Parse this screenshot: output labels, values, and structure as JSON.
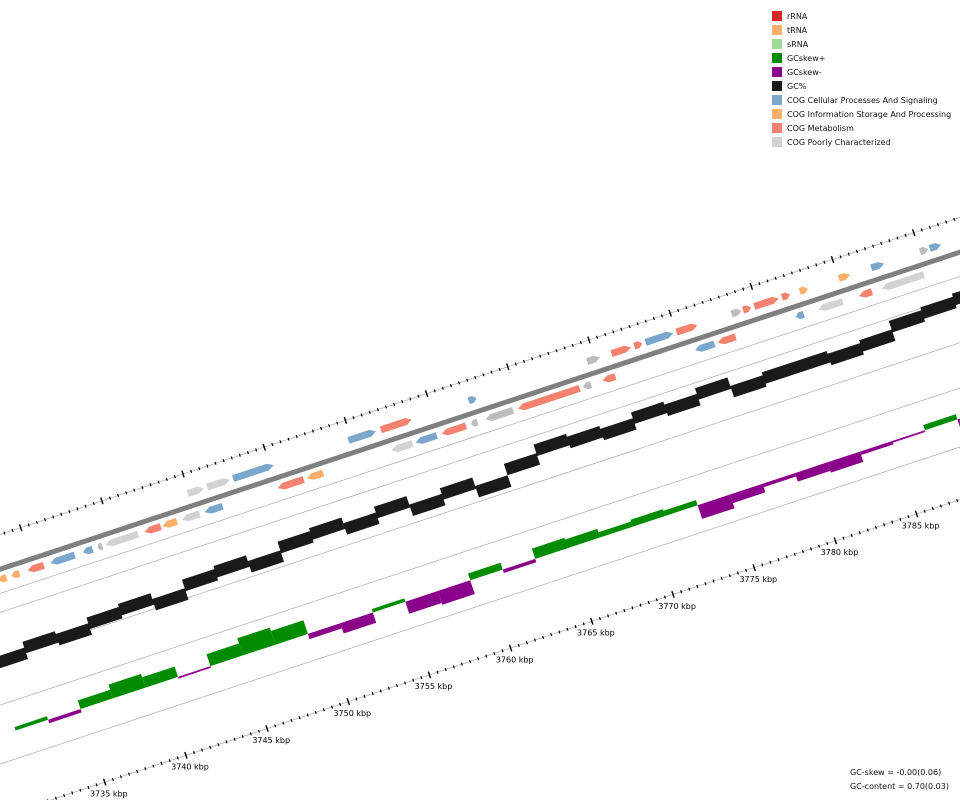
{
  "legend": [
    {
      "label": "rRNA",
      "color": "#d62728"
    },
    {
      "label": "tRNA",
      "color": "#fdae6b"
    },
    {
      "label": "sRNA",
      "color": "#a1d99b"
    },
    {
      "label": "GCskew+",
      "color": "#008c00"
    },
    {
      "label": "GCskew-",
      "color": "#8b008b"
    },
    {
      "label": "GC%",
      "color": "#1a1a1a"
    },
    {
      "label": "COG Cellular Processes And Signaling",
      "color": "#7ba7cc"
    },
    {
      "label": "COG Information Storage And Processing",
      "color": "#fdae6b"
    },
    {
      "label": "COG Metabolism",
      "color": "#f4826e"
    },
    {
      "label": "COG Poorly Characterized",
      "color": "#d3d3d3"
    }
  ],
  "axis": {
    "tick_labels": [
      "3735 kbp",
      "3740 kbp",
      "3745 kbp",
      "3750 kbp",
      "3755 kbp",
      "3760 kbp",
      "3765 kbp",
      "3770 kbp",
      "3775 kbp",
      "3780 kbp",
      "3785 kbp"
    ],
    "tick_values_kbp": [
      3735,
      3740,
      3745,
      3750,
      3755,
      3760,
      3765,
      3770,
      3775,
      3780,
      3785
    ]
  },
  "stats": {
    "gc_skew": "GC-skew = -0.00(0.06)",
    "gc_content": "GC-content = 0.70(0.03)"
  },
  "colors": {
    "backbone": "#808080",
    "track_line": "#a0a0a0",
    "cog_cellular": "#7ba7cc",
    "cog_information": "#fdae6b",
    "cog_metabolism": "#f4826e",
    "cog_poorly": "#d3d3d3",
    "unclassified": "#bdbdbd",
    "gc_percent": "#1a1a1a",
    "skew_pos": "#008c00",
    "skew_neg": "#8b008b"
  },
  "features": [
    {
      "start": 3732.8,
      "end": 3733.3,
      "strand": -1,
      "cog": "information"
    },
    {
      "start": 3733.6,
      "end": 3734.1,
      "strand": -1,
      "cog": "information"
    },
    {
      "start": 3734.6,
      "end": 3735.6,
      "strand": -1,
      "cog": "metabolism"
    },
    {
      "start": 3736.0,
      "end": 3737.5,
      "strand": -1,
      "cog": "cellular"
    },
    {
      "start": 3738.0,
      "end": 3738.6,
      "strand": -1,
      "cog": "cellular"
    },
    {
      "start": 3738.9,
      "end": 3739.2,
      "strand": -1,
      "cog": "unclassified"
    },
    {
      "start": 3739.4,
      "end": 3741.4,
      "strand": -1,
      "cog": "poorly"
    },
    {
      "start": 3741.8,
      "end": 3742.8,
      "strand": -1,
      "cog": "metabolism"
    },
    {
      "start": 3742.9,
      "end": 3743.8,
      "strand": -1,
      "cog": "information"
    },
    {
      "start": 3744.1,
      "end": 3745.2,
      "strand": -1,
      "cog": "poorly"
    },
    {
      "start": 3745.5,
      "end": 3746.6,
      "strand": -1,
      "cog": "cellular"
    },
    {
      "start": 3744.9,
      "end": 3745.9,
      "strand": 1,
      "cog": "poorly"
    },
    {
      "start": 3746.1,
      "end": 3747.5,
      "strand": 1,
      "cog": "poorly"
    },
    {
      "start": 3747.7,
      "end": 3750.2,
      "strand": 1,
      "cog": "cellular"
    },
    {
      "start": 3750.0,
      "end": 3751.6,
      "strand": -1,
      "cog": "metabolism"
    },
    {
      "start": 3751.8,
      "end": 3752.8,
      "strand": -1,
      "cog": "information"
    },
    {
      "start": 3754.8,
      "end": 3756.5,
      "strand": 1,
      "cog": "cellular"
    },
    {
      "start": 3756.8,
      "end": 3758.7,
      "strand": 1,
      "cog": "metabolism"
    },
    {
      "start": 3757.0,
      "end": 3758.3,
      "strand": -1,
      "cog": "poorly"
    },
    {
      "start": 3758.5,
      "end": 3759.8,
      "strand": -1,
      "cog": "cellular"
    },
    {
      "start": 3760.1,
      "end": 3761.6,
      "strand": -1,
      "cog": "metabolism"
    },
    {
      "start": 3761.9,
      "end": 3762.3,
      "strand": -1,
      "cog": "unclassified"
    },
    {
      "start": 3762.8,
      "end": 3764.5,
      "strand": -1,
      "cog": "unclassified"
    },
    {
      "start": 3762.2,
      "end": 3762.7,
      "strand": 1,
      "cog": "cellular"
    },
    {
      "start": 3764.8,
      "end": 3768.6,
      "strand": -1,
      "cog": "metabolism"
    },
    {
      "start": 3768.8,
      "end": 3769.3,
      "strand": -1,
      "cog": "unclassified"
    },
    {
      "start": 3770.0,
      "end": 3770.8,
      "strand": -1,
      "cog": "metabolism"
    },
    {
      "start": 3769.5,
      "end": 3770.3,
      "strand": 1,
      "cog": "unclassified"
    },
    {
      "start": 3771.0,
      "end": 3772.2,
      "strand": 1,
      "cog": "metabolism"
    },
    {
      "start": 3772.4,
      "end": 3772.9,
      "strand": 1,
      "cog": "metabolism"
    },
    {
      "start": 3773.1,
      "end": 3774.8,
      "strand": 1,
      "cog": "cellular"
    },
    {
      "start": 3775.0,
      "end": 3776.3,
      "strand": 1,
      "cog": "metabolism"
    },
    {
      "start": 3775.7,
      "end": 3776.9,
      "strand": -1,
      "cog": "cellular"
    },
    {
      "start": 3777.1,
      "end": 3778.2,
      "strand": -1,
      "cog": "metabolism"
    },
    {
      "start": 3778.4,
      "end": 3779.0,
      "strand": 1,
      "cog": "unclassified"
    },
    {
      "start": 3779.1,
      "end": 3779.6,
      "strand": 1,
      "cog": "metabolism"
    },
    {
      "start": 3779.8,
      "end": 3781.3,
      "strand": 1,
      "cog": "metabolism"
    },
    {
      "start": 3781.5,
      "end": 3782.0,
      "strand": 1,
      "cog": "metabolism"
    },
    {
      "start": 3781.9,
      "end": 3782.4,
      "strand": -1,
      "cog": "cellular"
    },
    {
      "start": 3782.6,
      "end": 3783.1,
      "strand": 1,
      "cog": "information"
    },
    {
      "start": 3783.3,
      "end": 3784.8,
      "strand": -1,
      "cog": "poorly"
    },
    {
      "start": 3785.0,
      "end": 3785.7,
      "strand": 1,
      "cog": "information"
    },
    {
      "start": 3785.8,
      "end": 3786.6,
      "strand": -1,
      "cog": "metabolism"
    },
    {
      "start": 3787.0,
      "end": 3787.8,
      "strand": 1,
      "cog": "cellular"
    },
    {
      "start": 3787.2,
      "end": 3789.8,
      "strand": -1,
      "cog": "poorly"
    },
    {
      "start": 3790.0,
      "end": 3790.5,
      "strand": 1,
      "cog": "unclassified"
    },
    {
      "start": 3790.6,
      "end": 3791.3,
      "strand": 1,
      "cog": "cellular"
    }
  ],
  "gc_percent": [
    [
      3731,
      0.62
    ],
    [
      3733,
      0.64
    ],
    [
      3735,
      0.63
    ],
    [
      3737,
      0.65
    ],
    [
      3739,
      0.66
    ],
    [
      3741,
      0.64
    ],
    [
      3743,
      0.67
    ],
    [
      3745,
      0.68
    ],
    [
      3747,
      0.66
    ],
    [
      3749,
      0.69
    ],
    [
      3751,
      0.7
    ],
    [
      3753,
      0.68
    ],
    [
      3755,
      0.7
    ],
    [
      3757,
      0.67
    ],
    [
      3759,
      0.69
    ],
    [
      3761,
      0.66
    ],
    [
      3763,
      0.7
    ],
    [
      3765,
      0.73
    ],
    [
      3767,
      0.72
    ],
    [
      3769,
      0.71
    ],
    [
      3771,
      0.73
    ],
    [
      3773,
      0.72
    ],
    [
      3775,
      0.74
    ],
    [
      3777,
      0.71
    ],
    [
      3779,
      0.72
    ],
    [
      3781,
      0.72
    ],
    [
      3783,
      0.71
    ],
    [
      3785,
      0.72
    ],
    [
      3787,
      0.75
    ],
    [
      3789,
      0.76
    ],
    [
      3791,
      0.77
    ]
  ],
  "gc_skew": [
    [
      3731,
      0.02
    ],
    [
      3733,
      -0.02
    ],
    [
      3735,
      0.05
    ],
    [
      3737,
      0.08
    ],
    [
      3739,
      0.06
    ],
    [
      3741,
      -0.01
    ],
    [
      3743,
      0.07
    ],
    [
      3745,
      0.1
    ],
    [
      3747,
      0.08
    ],
    [
      3749,
      -0.03
    ],
    [
      3751,
      -0.06
    ],
    [
      3753,
      0.02
    ],
    [
      3755,
      -0.07
    ],
    [
      3757,
      -0.08
    ],
    [
      3759,
      0.04
    ],
    [
      3761,
      -0.02
    ],
    [
      3763,
      0.06
    ],
    [
      3765,
      0.05
    ],
    [
      3767,
      0.03
    ],
    [
      3769,
      0.04
    ],
    [
      3771,
      0.03
    ],
    [
      3773,
      -0.08
    ],
    [
      3775,
      -0.05
    ],
    [
      3777,
      -0.02
    ],
    [
      3779,
      -0.05
    ],
    [
      3781,
      -0.06
    ],
    [
      3783,
      -0.02
    ],
    [
      3785,
      -0.01
    ],
    [
      3787,
      0.03
    ],
    [
      3789,
      -0.07
    ],
    [
      3791,
      0.05
    ]
  ]
}
